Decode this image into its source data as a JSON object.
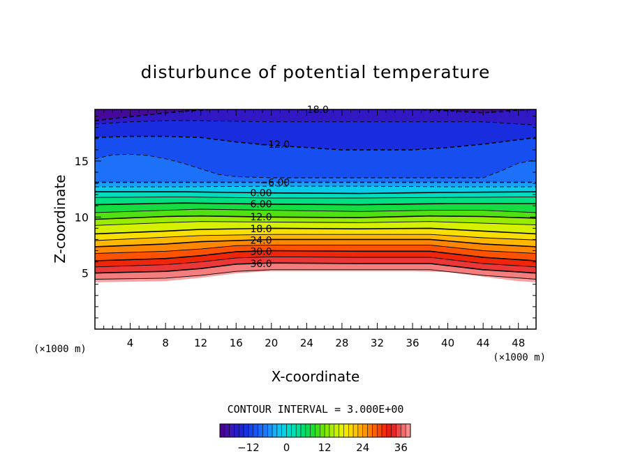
{
  "chart_data": {
    "type": "heatmap",
    "title": "disturbunce of potential temperature",
    "xlabel": "X-coordinate",
    "ylabel": "Z-coordinate",
    "x_unit_left": "(×1000 m)",
    "x_unit_right": "(×1000 m)",
    "xlim": [
      0,
      50
    ],
    "ylim": [
      0,
      19.6
    ],
    "x_ticks": [
      4,
      8,
      12,
      16,
      20,
      24,
      28,
      32,
      36,
      40,
      44,
      48
    ],
    "y_ticks": [
      5,
      10,
      15
    ],
    "contour_interval_text": "CONTOUR INTERVAL = 3.000E+00",
    "colorbar": {
      "min": -21,
      "max": 39,
      "ticks": [
        -12,
        0,
        12,
        24,
        36
      ],
      "tick_labels": [
        "−12",
        "0",
        "12",
        "24",
        "36"
      ]
    },
    "field_range": {
      "min": -21,
      "max": 39
    },
    "data_bottom_profile_z": [
      [
        0,
        4.2
      ],
      [
        8,
        4.3
      ],
      [
        12,
        4.6
      ],
      [
        16,
        5.0
      ],
      [
        20,
        5.2
      ],
      [
        24,
        5.2
      ],
      [
        36,
        5.2
      ],
      [
        40,
        5.1
      ],
      [
        44,
        4.7
      ],
      [
        48,
        4.3
      ],
      [
        50,
        4.2
      ]
    ],
    "contours": [
      {
        "level": -18,
        "label": "−18.0",
        "dashed": true,
        "labeled": true,
        "label_x": 23.1,
        "points": [
          [
            0,
            18.6
          ],
          [
            4,
            18.95
          ],
          [
            8,
            19.3
          ],
          [
            12,
            19.55
          ],
          [
            14,
            19.6
          ],
          [
            36,
            19.6
          ],
          [
            40,
            19.5
          ],
          [
            44,
            19.3
          ],
          [
            48,
            19.55
          ],
          [
            50,
            19.6
          ]
        ]
      },
      {
        "level": -15,
        "label": "",
        "dashed": true,
        "labeled": false,
        "points": [
          [
            0,
            18.3
          ],
          [
            4,
            18.5
          ],
          [
            8,
            18.6
          ],
          [
            12,
            18.6
          ],
          [
            20,
            18.5
          ],
          [
            28,
            18.5
          ],
          [
            36,
            18.5
          ],
          [
            40,
            18.5
          ],
          [
            44,
            18.5
          ],
          [
            48,
            18.3
          ],
          [
            50,
            18.2
          ]
        ]
      },
      {
        "level": -12,
        "label": "−12.0",
        "dashed": true,
        "labeled": true,
        "label_x": 18.7,
        "points": [
          [
            0,
            17.1
          ],
          [
            4,
            17.2
          ],
          [
            8,
            17.2
          ],
          [
            12,
            17.1
          ],
          [
            16,
            16.7
          ],
          [
            20,
            16.4
          ],
          [
            24,
            16.2
          ],
          [
            28,
            16.0
          ],
          [
            32,
            16.0
          ],
          [
            36,
            16.0
          ],
          [
            40,
            16.2
          ],
          [
            44,
            16.5
          ],
          [
            48,
            16.9
          ],
          [
            50,
            17.1
          ]
        ]
      },
      {
        "level": -9,
        "label": "",
        "dashed": true,
        "labeled": false,
        "points": [
          [
            0,
            15.2
          ],
          [
            2,
            15.55
          ],
          [
            4,
            15.6
          ],
          [
            6,
            15.5
          ],
          [
            8,
            15.2
          ],
          [
            10,
            14.8
          ],
          [
            12,
            14.3
          ],
          [
            14,
            13.8
          ],
          [
            16,
            13.6
          ],
          [
            20,
            13.5
          ],
          [
            40,
            13.5
          ],
          [
            44,
            13.5
          ],
          [
            46,
            14.1
          ],
          [
            48,
            14.8
          ],
          [
            50,
            15.1
          ]
        ]
      },
      {
        "level": -6,
        "label": "−6.00",
        "dashed": true,
        "labeled": true,
        "label_x": 18.7,
        "points": [
          [
            0,
            13.1
          ],
          [
            10,
            13.1
          ],
          [
            20,
            13.1
          ],
          [
            30,
            13.1
          ],
          [
            40,
            13.1
          ],
          [
            50,
            13.1
          ]
        ]
      },
      {
        "level": -3,
        "label": "",
        "dashed": true,
        "labeled": false,
        "points": [
          [
            0,
            12.7
          ],
          [
            10,
            12.7
          ],
          [
            20,
            12.75
          ],
          [
            30,
            12.75
          ],
          [
            40,
            12.7
          ],
          [
            50,
            12.7
          ]
        ]
      },
      {
        "level": 0,
        "label": "0.00",
        "dashed": false,
        "labeled": true,
        "label_x": 17.6,
        "points": [
          [
            0,
            12.25
          ],
          [
            10,
            12.25
          ],
          [
            20,
            12.15
          ],
          [
            30,
            12.1
          ],
          [
            40,
            12.2
          ],
          [
            50,
            12.25
          ]
        ]
      },
      {
        "level": 3,
        "label": "",
        "dashed": false,
        "labeled": false,
        "points": [
          [
            0,
            11.75
          ],
          [
            10,
            11.8
          ],
          [
            20,
            11.7
          ],
          [
            30,
            11.7
          ],
          [
            40,
            11.75
          ],
          [
            50,
            11.8
          ]
        ]
      },
      {
        "level": 6,
        "label": "6.00",
        "dashed": false,
        "labeled": true,
        "label_x": 17.6,
        "points": [
          [
            0,
            11.1
          ],
          [
            10,
            11.25
          ],
          [
            20,
            11.15
          ],
          [
            30,
            11.1
          ],
          [
            40,
            11.2
          ],
          [
            50,
            11.2
          ]
        ]
      },
      {
        "level": 9,
        "label": "",
        "dashed": false,
        "labeled": false,
        "points": [
          [
            0,
            10.4
          ],
          [
            8,
            10.6
          ],
          [
            12,
            10.7
          ],
          [
            20,
            10.6
          ],
          [
            30,
            10.5
          ],
          [
            38,
            10.6
          ],
          [
            44,
            10.6
          ],
          [
            50,
            10.4
          ]
        ]
      },
      {
        "level": 12,
        "label": "12.0",
        "dashed": false,
        "labeled": true,
        "label_x": 17.6,
        "points": [
          [
            0,
            9.8
          ],
          [
            8,
            10.05
          ],
          [
            12,
            10.1
          ],
          [
            20,
            10.0
          ],
          [
            30,
            9.95
          ],
          [
            38,
            10.1
          ],
          [
            44,
            10.05
          ],
          [
            50,
            9.9
          ]
        ]
      },
      {
        "level": 15,
        "label": "",
        "dashed": false,
        "labeled": false,
        "points": [
          [
            0,
            9.25
          ],
          [
            8,
            9.5
          ],
          [
            12,
            9.6
          ],
          [
            20,
            9.55
          ],
          [
            30,
            9.5
          ],
          [
            38,
            9.6
          ],
          [
            44,
            9.45
          ],
          [
            50,
            9.3
          ]
        ]
      },
      {
        "level": 18,
        "label": "18.0",
        "dashed": false,
        "labeled": true,
        "label_x": 17.6,
        "points": [
          [
            0,
            8.5
          ],
          [
            8,
            8.75
          ],
          [
            12,
            8.9
          ],
          [
            20,
            9.0
          ],
          [
            30,
            8.95
          ],
          [
            38,
            9.0
          ],
          [
            44,
            8.75
          ],
          [
            50,
            8.5
          ]
        ]
      },
      {
        "level": 21,
        "label": "",
        "dashed": false,
        "labeled": false,
        "points": [
          [
            0,
            7.9
          ],
          [
            8,
            8.2
          ],
          [
            12,
            8.35
          ],
          [
            20,
            8.45
          ],
          [
            30,
            8.45
          ],
          [
            38,
            8.45
          ],
          [
            44,
            8.15
          ],
          [
            50,
            7.95
          ]
        ]
      },
      {
        "level": 24,
        "label": "24.0",
        "dashed": false,
        "labeled": true,
        "label_x": 17.6,
        "points": [
          [
            0,
            7.35
          ],
          [
            8,
            7.6
          ],
          [
            12,
            7.8
          ],
          [
            20,
            8.0
          ],
          [
            30,
            8.0
          ],
          [
            38,
            8.0
          ],
          [
            44,
            7.6
          ],
          [
            50,
            7.35
          ]
        ]
      },
      {
        "level": 27,
        "label": "",
        "dashed": false,
        "labeled": false,
        "points": [
          [
            0,
            6.75
          ],
          [
            8,
            6.95
          ],
          [
            12,
            7.15
          ],
          [
            16,
            7.45
          ],
          [
            20,
            7.5
          ],
          [
            30,
            7.5
          ],
          [
            38,
            7.5
          ],
          [
            44,
            7.0
          ],
          [
            50,
            6.75
          ]
        ]
      },
      {
        "level": 30,
        "label": "30.0",
        "dashed": false,
        "labeled": true,
        "label_x": 17.6,
        "points": [
          [
            0,
            6.1
          ],
          [
            8,
            6.3
          ],
          [
            12,
            6.55
          ],
          [
            16,
            6.9
          ],
          [
            20,
            7.0
          ],
          [
            30,
            6.95
          ],
          [
            38,
            6.95
          ],
          [
            44,
            6.4
          ],
          [
            50,
            6.1
          ]
        ]
      },
      {
        "level": 33,
        "label": "",
        "dashed": false,
        "labeled": false,
        "points": [
          [
            0,
            5.55
          ],
          [
            8,
            5.75
          ],
          [
            12,
            6.0
          ],
          [
            16,
            6.35
          ],
          [
            20,
            6.45
          ],
          [
            30,
            6.4
          ],
          [
            38,
            6.4
          ],
          [
            44,
            5.85
          ],
          [
            50,
            5.55
          ]
        ]
      },
      {
        "level": 36,
        "label": "36.0",
        "dashed": false,
        "labeled": true,
        "label_x": 17.6,
        "points": [
          [
            0,
            5.0
          ],
          [
            8,
            5.15
          ],
          [
            12,
            5.4
          ],
          [
            16,
            5.8
          ],
          [
            20,
            5.9
          ],
          [
            30,
            5.85
          ],
          [
            38,
            5.85
          ],
          [
            44,
            5.3
          ],
          [
            50,
            5.0
          ]
        ]
      },
      {
        "level": 39,
        "label": "",
        "dashed": false,
        "labeled": false,
        "points": [
          [
            0,
            4.45
          ],
          [
            8,
            4.55
          ],
          [
            12,
            4.8
          ],
          [
            16,
            5.15
          ],
          [
            20,
            5.3
          ],
          [
            30,
            5.3
          ],
          [
            38,
            5.3
          ],
          [
            44,
            4.8
          ],
          [
            50,
            4.45
          ]
        ]
      }
    ]
  }
}
